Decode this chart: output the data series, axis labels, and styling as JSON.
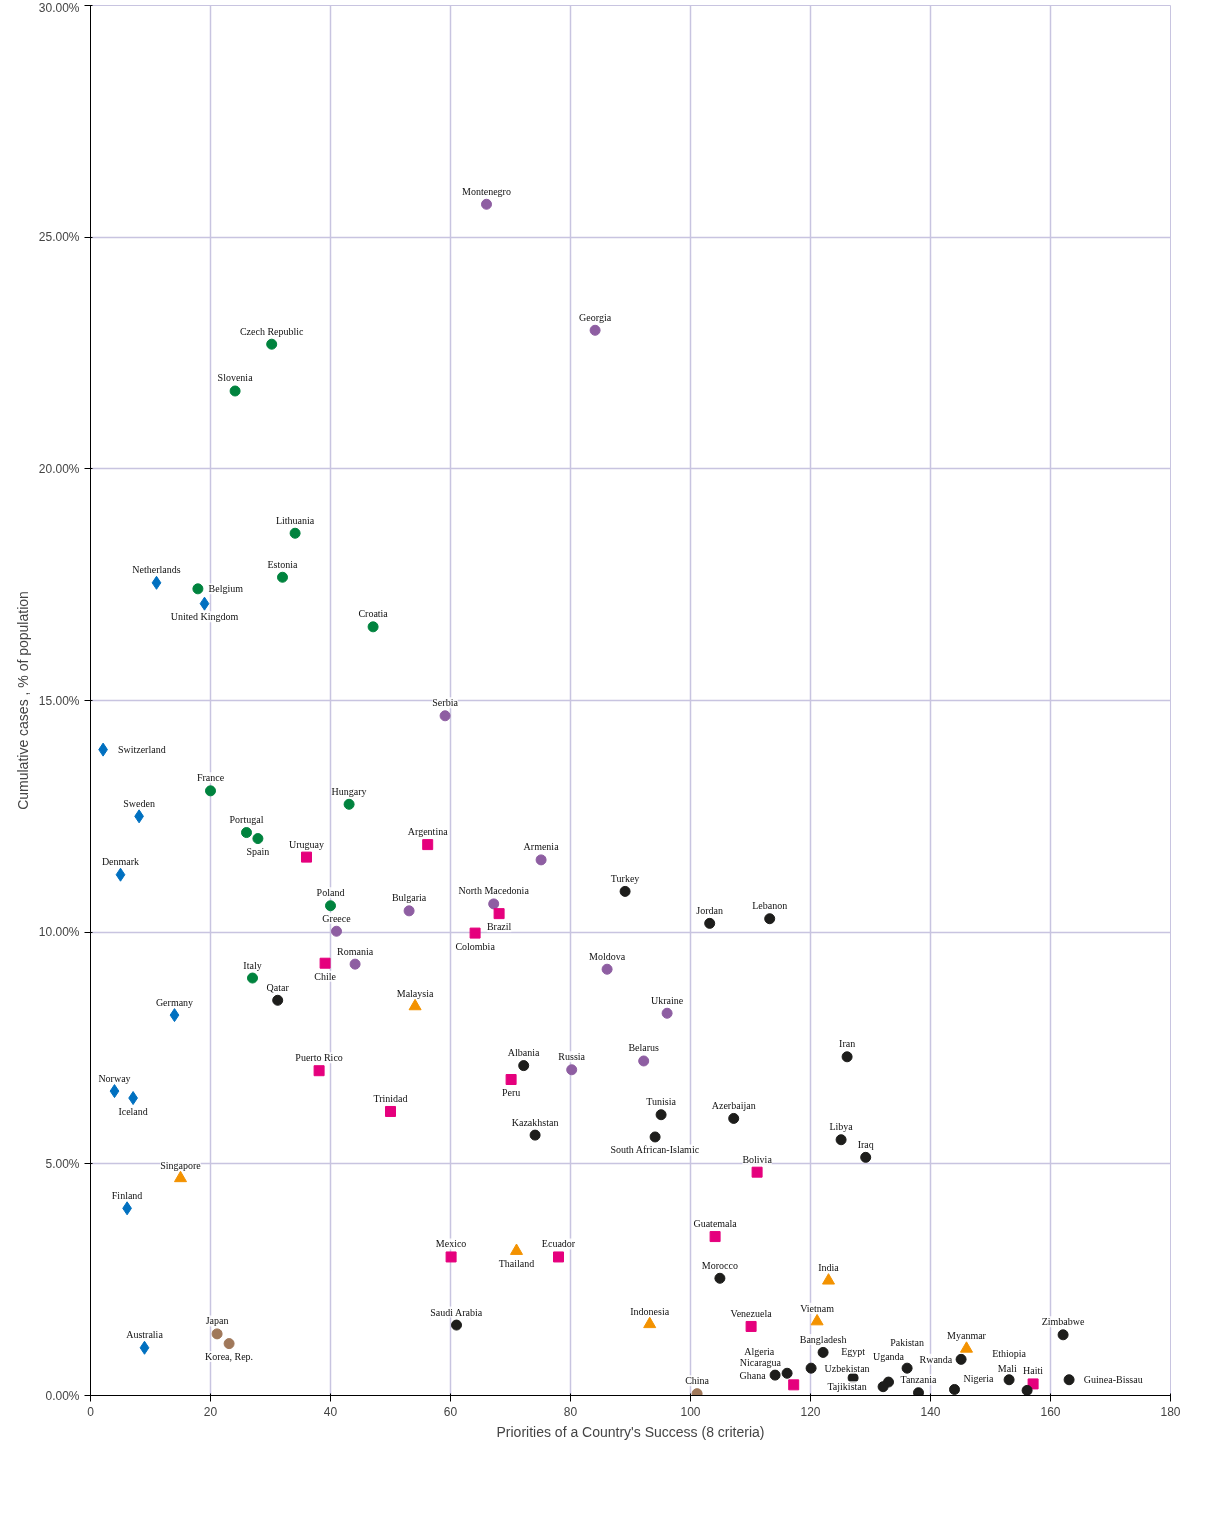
{
  "chart_data": {
    "type": "scatter",
    "xlabel": "Priorities of a Country's Success (8 criteria)",
    "ylabel": "Cumulative cases , % of population",
    "xlim": [
      0,
      180
    ],
    "ylim": [
      0,
      30
    ],
    "xticks": [
      0,
      20,
      40,
      60,
      80,
      100,
      120,
      140,
      160,
      180
    ],
    "yticks": [
      {
        "value": 0,
        "label": "0.00%"
      },
      {
        "value": 5,
        "label": "5.00%"
      },
      {
        "value": 10,
        "label": "10.00%"
      },
      {
        "value": 15,
        "label": "15.00%"
      },
      {
        "value": 20,
        "label": "20.00%"
      },
      {
        "value": 25,
        "label": "25.00%"
      },
      {
        "value": 30,
        "label": "30.00%"
      }
    ],
    "grid": true,
    "series": [
      {
        "color": "#0070c0",
        "marker": "diamond",
        "x": [
          11.0,
          19.0,
          2.1,
          8.1,
          5.0,
          14.0,
          4.0,
          7.1,
          6.1,
          9.0
        ],
        "values": [
          17.54,
          17.09,
          13.94,
          12.5,
          11.24,
          8.21,
          6.57,
          6.42,
          4.04,
          1.03
        ]
      },
      {
        "color": "#00833e",
        "marker": "circle",
        "x": [
          30.2,
          24.1,
          34.1,
          32.0,
          17.9,
          47.1,
          20.0,
          43.1,
          26.0,
          27.9,
          40.0,
          27.0
        ],
        "values": [
          22.69,
          21.68,
          18.61,
          17.66,
          17.41,
          16.59,
          13.05,
          12.76,
          12.15,
          12.02,
          10.57,
          9.01
        ]
      },
      {
        "color": "#8e5ea2",
        "marker": "circle",
        "x": [
          66.0,
          84.1,
          59.1,
          75.1,
          67.2,
          53.1,
          41.0,
          44.1,
          86.1,
          96.1,
          92.2,
          80.2
        ],
        "values": [
          25.71,
          22.99,
          14.67,
          11.56,
          10.61,
          10.46,
          10.02,
          9.31,
          9.2,
          8.25,
          7.22,
          7.03
        ]
      },
      {
        "color": "#e5007d",
        "marker": "square",
        "x": [
          36.0,
          56.2,
          68.1,
          64.1,
          39.1,
          38.1,
          70.1,
          50.0,
          111.1,
          104.1,
          60.1,
          78.0,
          110.1,
          117.2,
          157.1
        ],
        "values": [
          11.62,
          11.89,
          10.4,
          9.98,
          9.33,
          7.01,
          6.82,
          6.13,
          4.82,
          3.43,
          2.99,
          2.99,
          1.49,
          0.23,
          0.25
        ]
      },
      {
        "color": "#f39200",
        "marker": "triangle",
        "x": [
          15.0,
          54.1,
          71.0,
          93.2,
          123.0,
          121.1,
          146.0
        ],
        "values": [
          4.69,
          8.4,
          3.12,
          1.54,
          2.48,
          1.6,
          1.01
        ]
      },
      {
        "color": "#a0785a",
        "marker": "circle",
        "x": [
          21.1,
          23.1,
          101.1
        ],
        "values": [
          1.33,
          1.12,
          0.04
        ]
      },
      {
        "color": "#1d1d1b",
        "marker": "circle",
        "x": [
          31.2,
          89.1,
          103.2,
          113.2,
          126.1,
          72.2,
          95.1,
          107.2,
          94.1,
          74.1,
          125.1,
          129.2,
          104.9,
          61.0,
          162.1,
          122.1,
          114.1,
          116.1,
          120.1,
          127.1,
          133.0,
          132.1,
          136.1,
          138.0,
          144.0,
          145.1,
          153.1,
          156.1,
          163.1
        ],
        "values": [
          8.53,
          10.88,
          10.19,
          10.29,
          7.31,
          7.12,
          6.06,
          5.98,
          5.58,
          5.62,
          5.52,
          5.14,
          2.53,
          1.52,
          1.31,
          0.93,
          0.44,
          0.48,
          0.59,
          0.38,
          0.29,
          0.19,
          0.59,
          0.06,
          0.13,
          0.78,
          0.34,
          0.11,
          0.34
        ]
      }
    ],
    "annotations": [
      {
        "text": "Netherlands",
        "x": 11.0,
        "y": 17.54
      },
      {
        "text": "United Kingdom",
        "x": 19.0,
        "y": 17.09
      },
      {
        "text": "Switzerland",
        "x": 2.1,
        "y": 13.94
      },
      {
        "text": "Sweden",
        "x": 8.1,
        "y": 12.5
      },
      {
        "text": "Denmark",
        "x": 5.0,
        "y": 11.24
      },
      {
        "text": "Germany",
        "x": 14.0,
        "y": 8.21
      },
      {
        "text": "Norway",
        "x": 4.0,
        "y": 6.57
      },
      {
        "text": "Iceland",
        "x": 7.1,
        "y": 6.42
      },
      {
        "text": "Finland",
        "x": 6.1,
        "y": 4.04
      },
      {
        "text": "Australia",
        "x": 9.0,
        "y": 1.03
      },
      {
        "text": "Czech Republic",
        "x": 30.2,
        "y": 22.69
      },
      {
        "text": "Slovenia",
        "x": 24.1,
        "y": 21.68
      },
      {
        "text": "Lithuania",
        "x": 34.1,
        "y": 18.61
      },
      {
        "text": "Estonia",
        "x": 32.0,
        "y": 17.66
      },
      {
        "text": "Belgium",
        "x": 17.9,
        "y": 17.41
      },
      {
        "text": "Croatia",
        "x": 47.1,
        "y": 16.59
      },
      {
        "text": "France",
        "x": 20.0,
        "y": 13.05
      },
      {
        "text": "Hungary",
        "x": 43.1,
        "y": 12.76
      },
      {
        "text": "Portugal",
        "x": 26.0,
        "y": 12.15
      },
      {
        "text": "Spain",
        "x": 27.9,
        "y": 12.02
      },
      {
        "text": "Poland",
        "x": 40.0,
        "y": 10.57
      },
      {
        "text": "Italy",
        "x": 27.0,
        "y": 9.01
      },
      {
        "text": "Montenegro",
        "x": 66.0,
        "y": 25.71
      },
      {
        "text": "Georgia",
        "x": 84.1,
        "y": 22.99
      },
      {
        "text": "Serbia",
        "x": 59.1,
        "y": 14.67
      },
      {
        "text": "Armenia",
        "x": 75.1,
        "y": 11.56
      },
      {
        "text": "North Macedonia",
        "x": 67.2,
        "y": 10.61
      },
      {
        "text": "Bulgaria",
        "x": 53.1,
        "y": 10.46
      },
      {
        "text": "Greece",
        "x": 41.0,
        "y": 10.02
      },
      {
        "text": "Romania",
        "x": 44.1,
        "y": 9.31
      },
      {
        "text": "Moldova",
        "x": 86.1,
        "y": 9.2
      },
      {
        "text": "Ukraine",
        "x": 96.1,
        "y": 8.25
      },
      {
        "text": "Belarus",
        "x": 92.2,
        "y": 7.22
      },
      {
        "text": "Russia",
        "x": 80.2,
        "y": 7.03
      },
      {
        "text": "Uruguay",
        "x": 36.0,
        "y": 11.62
      },
      {
        "text": "Argentina",
        "x": 56.2,
        "y": 11.89
      },
      {
        "text": "Brazil",
        "x": 68.1,
        "y": 10.4
      },
      {
        "text": "Colombia",
        "x": 64.1,
        "y": 9.98
      },
      {
        "text": "Chile",
        "x": 39.1,
        "y": 9.33
      },
      {
        "text": "Puerto Rico",
        "x": 38.1,
        "y": 7.01
      },
      {
        "text": "Peru",
        "x": 70.1,
        "y": 6.82
      },
      {
        "text": "Trinidad",
        "x": 50.0,
        "y": 6.13
      },
      {
        "text": "Bolivia",
        "x": 111.1,
        "y": 4.82
      },
      {
        "text": "Guatemala",
        "x": 104.1,
        "y": 3.43
      },
      {
        "text": "Mexico",
        "x": 60.1,
        "y": 2.99
      },
      {
        "text": "Ecuador",
        "x": 78.0,
        "y": 2.99
      },
      {
        "text": "Venezuela",
        "x": 110.1,
        "y": 1.49
      },
      {
        "text": "Nicaragua",
        "x": 117.2,
        "y": 0.23
      },
      {
        "text": "Haiti",
        "x": 157.1,
        "y": 0.25
      },
      {
        "text": "Singapore",
        "x": 15.0,
        "y": 4.69
      },
      {
        "text": "Malaysia",
        "x": 54.1,
        "y": 8.4
      },
      {
        "text": "Thailand",
        "x": 71.0,
        "y": 3.12
      },
      {
        "text": "Indonesia",
        "x": 93.2,
        "y": 1.54
      },
      {
        "text": "India",
        "x": 123.0,
        "y": 2.48
      },
      {
        "text": "Vietnam",
        "x": 121.1,
        "y": 1.6
      },
      {
        "text": "Myanmar",
        "x": 146.0,
        "y": 1.01
      },
      {
        "text": "Japan",
        "x": 21.1,
        "y": 1.33
      },
      {
        "text": "Korea, Rep.",
        "x": 23.1,
        "y": 1.12
      },
      {
        "text": "China",
        "x": 101.1,
        "y": 0.04
      },
      {
        "text": "Qatar",
        "x": 31.2,
        "y": 8.53
      },
      {
        "text": "Turkey",
        "x": 89.1,
        "y": 10.88
      },
      {
        "text": "Jordan",
        "x": 103.2,
        "y": 10.19
      },
      {
        "text": "Lebanon",
        "x": 113.2,
        "y": 10.29
      },
      {
        "text": "Iran",
        "x": 126.1,
        "y": 7.31
      },
      {
        "text": "Albania",
        "x": 72.2,
        "y": 7.12
      },
      {
        "text": "Tunisia",
        "x": 95.1,
        "y": 6.06
      },
      {
        "text": "Azerbaijan",
        "x": 107.2,
        "y": 5.98
      },
      {
        "text": "South African-Islamic",
        "x": 94.1,
        "y": 5.58
      },
      {
        "text": "Kazakhstan",
        "x": 74.1,
        "y": 5.62
      },
      {
        "text": "Libya",
        "x": 125.1,
        "y": 5.52
      },
      {
        "text": "Iraq",
        "x": 129.2,
        "y": 5.14
      },
      {
        "text": "Morocco",
        "x": 104.9,
        "y": 2.53
      },
      {
        "text": "Saudi Arabia",
        "x": 61.0,
        "y": 1.52
      },
      {
        "text": "Zimbabwe",
        "x": 162.1,
        "y": 1.31
      },
      {
        "text": "Bangladesh",
        "x": 122.1,
        "y": 0.93
      },
      {
        "text": "Ghana",
        "x": 114.1,
        "y": 0.44
      },
      {
        "text": "Algeria",
        "x": 116.1,
        "y": 0.48
      },
      {
        "text": "Uzbekistan",
        "x": 120.1,
        "y": 0.59
      },
      {
        "text": "Egypt",
        "x": 127.1,
        "y": 0.38
      },
      {
        "text": "Uganda",
        "x": 133.0,
        "y": 0.29
      },
      {
        "text": "Tajikistan",
        "x": 132.1,
        "y": 0.19
      },
      {
        "text": "Pakistan",
        "x": 136.1,
        "y": 0.59
      },
      {
        "text": "Tanzania",
        "x": 138.0,
        "y": 0.06
      },
      {
        "text": "Nigeria",
        "x": 144.0,
        "y": 0.13
      },
      {
        "text": "Rwanda",
        "x": 145.1,
        "y": 0.78
      },
      {
        "text": "Ethiopia",
        "x": 153.1,
        "y": 0.34
      },
      {
        "text": "Mali",
        "x": 156.1,
        "y": 0.11
      },
      {
        "text": "Guinea-Bissau",
        "x": 163.1,
        "y": 0.34
      }
    ]
  }
}
